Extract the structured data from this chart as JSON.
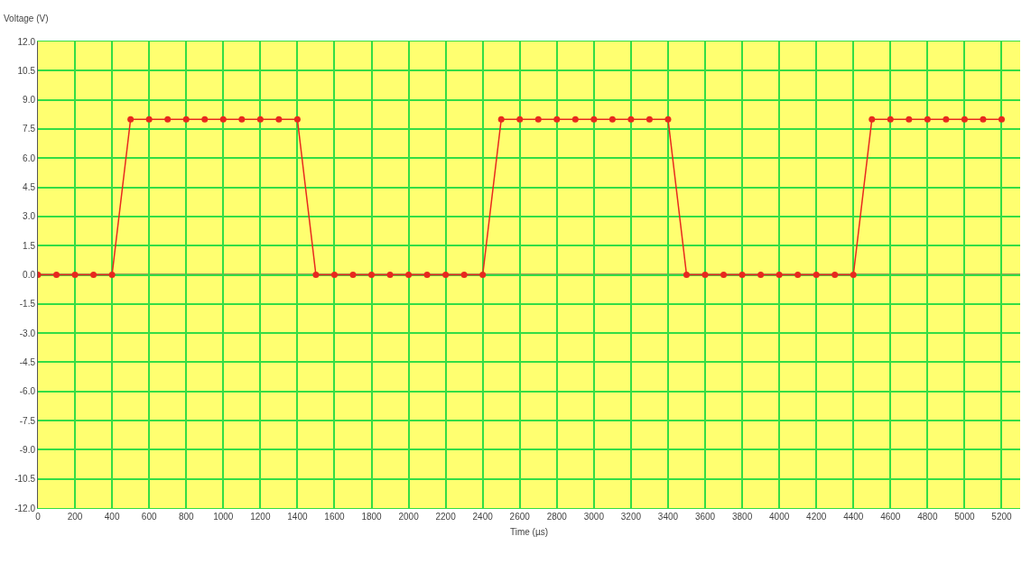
{
  "chart_data": {
    "type": "line",
    "xlabel": "Time (µs)",
    "ylabel": "Voltage (V)",
    "x": [
      0,
      100,
      200,
      300,
      400,
      500,
      600,
      700,
      800,
      900,
      1000,
      1100,
      1200,
      1300,
      1400,
      1500,
      1600,
      1700,
      1800,
      1900,
      2000,
      2100,
      2200,
      2300,
      2400,
      2500,
      2600,
      2700,
      2800,
      2900,
      3000,
      3100,
      3200,
      3300,
      3400,
      3500,
      3600,
      3700,
      3800,
      3900,
      4000,
      4100,
      4200,
      4300,
      4400,
      4500,
      4600,
      4700,
      4800,
      4900,
      5000,
      5100,
      5200
    ],
    "series": [
      {
        "color": "#e8281e",
        "values": [
          0,
          0,
          0,
          0,
          0,
          8,
          8,
          8,
          8,
          8,
          8,
          8,
          8,
          8,
          8,
          0,
          0,
          0,
          0,
          0,
          0,
          0,
          0,
          0,
          0,
          8,
          8,
          8,
          8,
          8,
          8,
          8,
          8,
          8,
          8,
          0,
          0,
          0,
          0,
          0,
          0,
          0,
          0,
          0,
          0,
          8,
          8,
          8,
          8,
          8,
          8,
          8,
          8
        ]
      }
    ],
    "xlim": [
      0,
      5300
    ],
    "xticks": [
      0,
      200,
      400,
      600,
      800,
      1000,
      1200,
      1400,
      1600,
      1800,
      2000,
      2200,
      2400,
      2600,
      2800,
      3000,
      3200,
      3400,
      3600,
      3800,
      4000,
      4200,
      4400,
      4600,
      4800,
      5000,
      5200
    ],
    "ylim": [
      -12,
      12
    ],
    "yticks": [
      {
        "value": -12,
        "label": "-12.0"
      },
      {
        "value": -10.5,
        "label": "-10.5"
      },
      {
        "value": -9,
        "label": "-9.0"
      },
      {
        "value": -7.5,
        "label": "-7.5"
      },
      {
        "value": -6,
        "label": "-6.0"
      },
      {
        "value": -4.5,
        "label": "-4.5"
      },
      {
        "value": -3,
        "label": "-3.0"
      },
      {
        "value": -1.5,
        "label": "-1.5"
      },
      {
        "value": 0,
        "label": "0.0"
      },
      {
        "value": 1.5,
        "label": "1.5"
      },
      {
        "value": 3,
        "label": "3.0"
      },
      {
        "value": 4.5,
        "label": "4.5"
      },
      {
        "value": 6,
        "label": "6.0"
      },
      {
        "value": 7.5,
        "label": "7.5"
      },
      {
        "value": 9,
        "label": "9.0"
      },
      {
        "value": 10.5,
        "label": "10.5"
      },
      {
        "value": 12,
        "label": "12.0"
      }
    ],
    "ref_lines": [
      {
        "axis": "y",
        "value": 0,
        "color": "#404040"
      }
    ],
    "grid": true,
    "marker": "circle",
    "line_style": "solid"
  }
}
